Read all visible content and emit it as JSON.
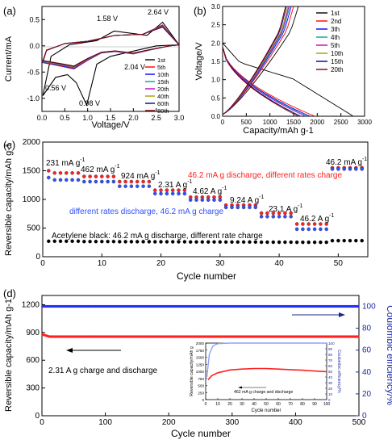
{
  "chart_data": [
    {
      "panel": "(a)",
      "type": "line",
      "xlabel": "Voltage/V",
      "ylabel": "Current/mA",
      "xlim": [
        0,
        3.0
      ],
      "ylim": [
        -1.25,
        0.75
      ],
      "xticks": [
        "0.0",
        "0.5",
        "1.0",
        "1.5",
        "2.0",
        "2.5",
        "3.0"
      ],
      "yticks": [
        "0.5",
        "0.0",
        "-0.5",
        "-1.0"
      ],
      "annotations": [
        "1.58 V",
        "2.64 V",
        "0.56 V",
        "0.98 V",
        "2.04 V"
      ],
      "legend_position": "lower-right",
      "series": [
        {
          "name": "1st",
          "color": "#000000",
          "x": [
            0.02,
            0.3,
            0.56,
            0.75,
            0.98,
            1.2,
            1.5,
            2.0,
            2.5,
            3.0,
            2.64,
            2.3,
            1.58,
            1.2,
            0.6,
            0.2,
            0.02
          ],
          "y": [
            -0.95,
            -0.6,
            -0.55,
            -0.7,
            -1.13,
            -0.35,
            -0.2,
            -0.1,
            0.0,
            0.02,
            0.45,
            0.2,
            0.28,
            0.1,
            0.02,
            -0.2,
            -0.95
          ]
        },
        {
          "name": "5th",
          "color": "#ff0000"
        },
        {
          "name": "10th",
          "color": "#0000ff"
        },
        {
          "name": "15th",
          "color": "#00a0a0"
        },
        {
          "name": "20th",
          "color": "#c000c0"
        },
        {
          "name": "40th",
          "color": "#a0a000"
        },
        {
          "name": "60th",
          "color": "#000080"
        },
        {
          "name": "80th",
          "color": "#800000"
        }
      ]
    },
    {
      "panel": "(b)",
      "type": "line",
      "xlabel": "Capacity/mAh g-1",
      "ylabel": "Voltage/V",
      "xlim": [
        0,
        3000
      ],
      "ylim": [
        0,
        3.0
      ],
      "xticks": [
        "0",
        "500",
        "1000",
        "1500",
        "2000",
        "2500",
        "3000"
      ],
      "yticks": [
        "0.0",
        "0.5",
        "1.0",
        "1.5",
        "2.0",
        "2.5",
        "3.0"
      ],
      "legend_position": "right",
      "series": [
        {
          "name": "1st",
          "color": "#000000",
          "discharge_end": 2750,
          "charge_end": 1600
        },
        {
          "name": "2nd",
          "color": "#ff0000",
          "discharge_end": 1950,
          "charge_end": 1500
        },
        {
          "name": "3th",
          "color": "#0000ff",
          "discharge_end": 1850,
          "charge_end": 1450
        },
        {
          "name": "4th",
          "color": "#00a0a0",
          "discharge_end": 1800,
          "charge_end": 1420
        },
        {
          "name": "5th",
          "color": "#c000c0",
          "discharge_end": 1750,
          "charge_end": 1400
        },
        {
          "name": "10th",
          "color": "#a0a000",
          "discharge_end": 1650,
          "charge_end": 1380
        },
        {
          "name": "15th",
          "color": "#000080",
          "discharge_end": 1650,
          "charge_end": 1350
        },
        {
          "name": "20th",
          "color": "#800000",
          "discharge_end": 1600,
          "charge_end": 1330
        }
      ]
    },
    {
      "panel": "(c)",
      "type": "scatter",
      "xlabel": "Cycle number",
      "ylabel": "Reversible capacity/mAh g-1",
      "xlim": [
        0,
        55
      ],
      "ylim": [
        0,
        2000
      ],
      "xticks": [
        "0",
        "10",
        "20",
        "30",
        "40",
        "50"
      ],
      "yticks": [
        "0",
        "500",
        "1000",
        "1500",
        "2000"
      ],
      "annotations": [
        "231 mA g",
        "462 mA g",
        "924 mA g",
        "2.31 A g",
        "4.62 A g",
        "9.24 A g",
        "23.1 A g",
        "46.2 A g",
        "46.2 mA g"
      ],
      "texts": {
        "red_label": "46.2 mA g discharge, different rates charge",
        "blue_label": "different rates discharge, 46.2 mA g charge",
        "black_label": "Acetylene black: 46.2 mA g discharge, different rate charge",
        "sup": "-1"
      },
      "series": [
        {
          "name": "red",
          "color": "#ff2020",
          "step_values": [
            1460,
            1400,
            1310,
            1160,
            1040,
            900,
            760,
            570,
            1550
          ]
        },
        {
          "name": "blue",
          "color": "#3050ff",
          "step_values": [
            1340,
            1310,
            1230,
            1100,
            990,
            860,
            700,
            480,
            1530
          ]
        },
        {
          "name": "black",
          "color": "#000000",
          "step_values": [
            270,
            265,
            262,
            260,
            258,
            256,
            254,
            252,
            280
          ]
        }
      ]
    },
    {
      "panel": "(d)",
      "type": "scatter",
      "xlabel": "Cycle number",
      "ylabel": "Reversible capacity/mAh g-1",
      "ylabel_right": "Coulombic efficiency/%",
      "xlim": [
        0,
        500
      ],
      "ylim": [
        0,
        1300
      ],
      "ylim_right": [
        0,
        110
      ],
      "xticks": [
        "0",
        "100",
        "200",
        "300",
        "400",
        "500"
      ],
      "yticks": [
        "0",
        "300",
        "600",
        "900",
        "1200"
      ],
      "yticks_right": [
        "0",
        "20",
        "40",
        "60",
        "80",
        "100"
      ],
      "annotations": [
        "2.31 A g charge and discharge"
      ],
      "series": [
        {
          "name": "capacity",
          "color": "#ff2020",
          "start": 880,
          "value": 855
        },
        {
          "name": "coulombic efficiency",
          "color": "#2030ff",
          "value": 100
        }
      ],
      "inset": {
        "type": "line",
        "xlabel": "Cycle number",
        "ylabel": "Reversible capacity/mAh g",
        "ylabel_right": "Coulombic efficiency/%",
        "xlim": [
          0,
          100
        ],
        "ylim": [
          0,
          2000
        ],
        "xticks": [
          "0",
          "10",
          "20",
          "30",
          "40",
          "50",
          "60",
          "70",
          "80",
          "90",
          "100"
        ],
        "yticks": [
          "0",
          "250",
          "500",
          "750",
          "1000",
          "1250",
          "1500",
          "1750",
          "2000"
        ],
        "yticks_right": [
          "0",
          "10",
          "20",
          "30",
          "40",
          "50",
          "60",
          "70",
          "80",
          "90",
          "100"
        ],
        "annotation": "462 mA g charge and discharge",
        "capacity_x": [
          2,
          5,
          10,
          20,
          30,
          40,
          50,
          60,
          70,
          80,
          90,
          100
        ],
        "capacity_y": [
          700,
          850,
          950,
          1050,
          1080,
          1100,
          1100,
          1080,
          1060,
          1040,
          1010,
          990
        ],
        "ce_x": [
          1,
          3,
          6,
          10,
          20,
          50,
          100
        ],
        "ce_y": [
          40,
          80,
          95,
          99,
          100,
          100,
          100
        ]
      }
    }
  ]
}
